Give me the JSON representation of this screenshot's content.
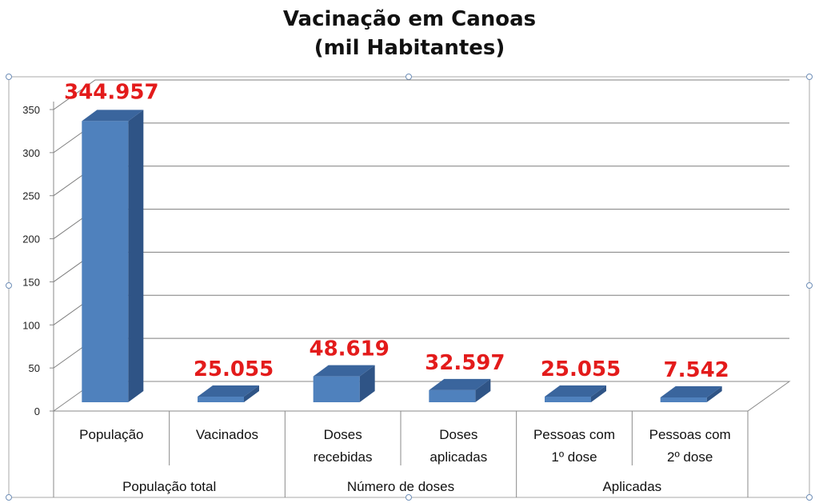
{
  "chart_data": {
    "type": "bar",
    "title": "Vacinação em Canoas",
    "subtitle": "(mil Habitantes)",
    "categories": [
      {
        "label": [
          "População"
        ],
        "group": "População total"
      },
      {
        "label": [
          "Vacinados"
        ],
        "group": "População total"
      },
      {
        "label": [
          "Doses",
          "recebidas"
        ],
        "group": "Número de doses"
      },
      {
        "label": [
          "Doses",
          "aplicadas"
        ],
        "group": "Número de doses"
      },
      {
        "label": [
          "Pessoas com",
          "1º dose"
        ],
        "group": "Aplicadas"
      },
      {
        "label": [
          "Pessoas com",
          "2º dose"
        ],
        "group": "Aplicadas"
      }
    ],
    "groups": [
      "População total",
      "Número de doses",
      "Aplicadas"
    ],
    "values": [
      344.957,
      25.055,
      48.619,
      32.597,
      25.055,
      7.542
    ],
    "data_labels": [
      "344.957",
      "25.055",
      "48.619",
      "32.597",
      "25.055",
      "7.542"
    ],
    "yticks": [
      0,
      50,
      100,
      150,
      200,
      250,
      300,
      350
    ],
    "ylim": [
      0,
      350
    ],
    "grid": true,
    "legend": "none",
    "colors": {
      "bar_front": "#4f81bd",
      "bar_side": "#2f5486",
      "bar_top": "#3a659d",
      "label": "#e31b1b",
      "grid": "#7f7f7f"
    }
  }
}
